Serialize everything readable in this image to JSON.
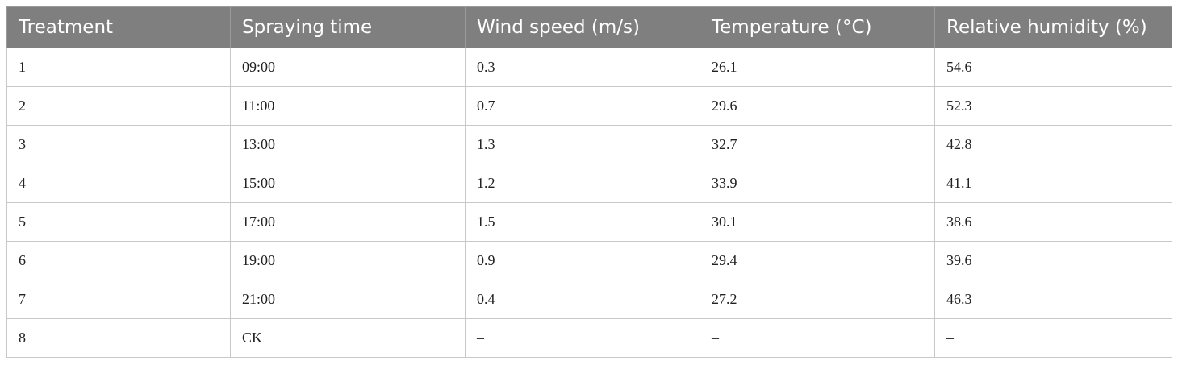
{
  "table": {
    "header": [
      "Treatment",
      "Spraying time",
      "Wind speed (m/s)",
      "Temperature (°C)",
      "Relative humidity (%)"
    ],
    "rows": [
      [
        "1",
        "09:00",
        "0.3",
        "26.1",
        "54.6"
      ],
      [
        "2",
        "11:00",
        "0.7",
        "29.6",
        "52.3"
      ],
      [
        "3",
        "13:00",
        "1.3",
        "32.7",
        "42.8"
      ],
      [
        "4",
        "15:00",
        "1.2",
        "33.9",
        "41.1"
      ],
      [
        "5",
        "17:00",
        "1.5",
        "30.1",
        "38.6"
      ],
      [
        "6",
        "19:00",
        "0.9",
        "29.4",
        "39.6"
      ],
      [
        "7",
        "21:00",
        "0.4",
        "27.2",
        "46.3"
      ],
      [
        "8",
        "CK",
        "–",
        "–",
        "–"
      ]
    ]
  }
}
